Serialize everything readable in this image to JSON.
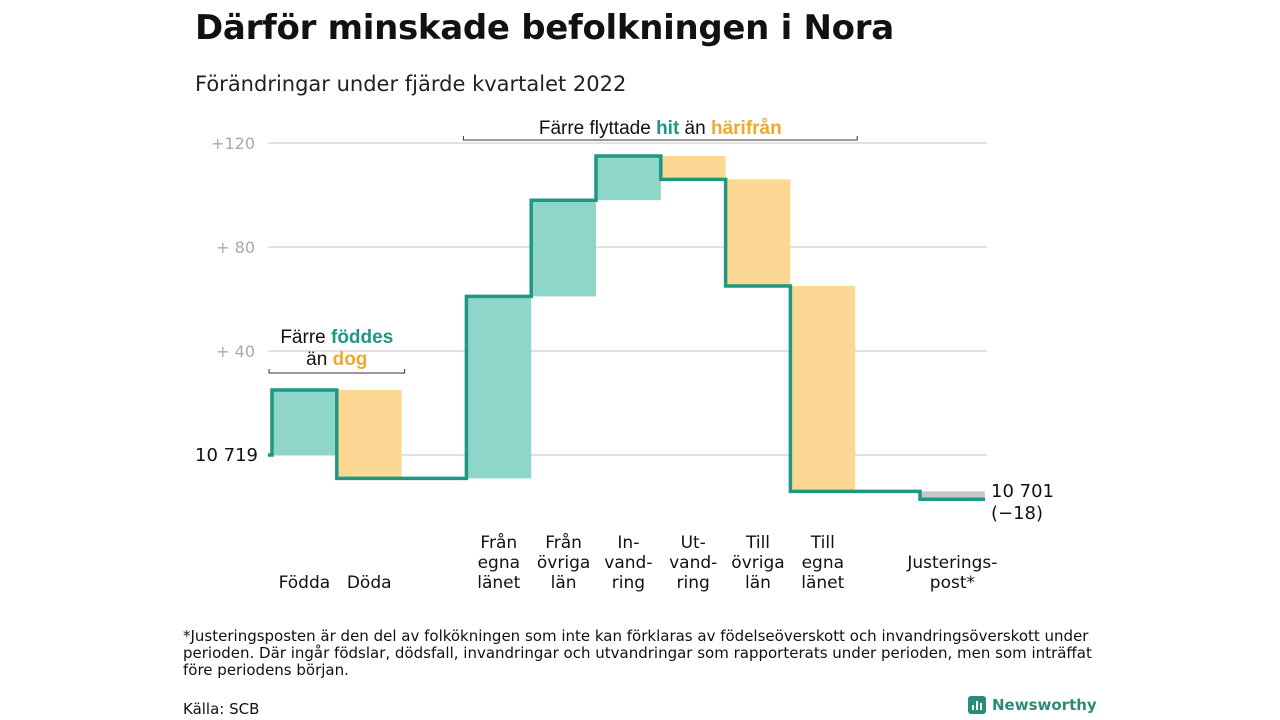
{
  "title": "Därför minskade befolkningen i Nora",
  "subtitle": "Förändringar under fjärde kvartalet 2022",
  "footnote": "*Justeringsposten är den del av folkökningen som inte kan förklaras av födelseöverskott och invandringsöverskott under perioden. Där ingår födslar, dödsfall, invandringar och utvandringar som rapporterats under perioden, men som inträffat före periodens början.",
  "source": "Källa: SCB",
  "brand": "Newsworthy",
  "colors": {
    "increase": "#8ed6c9",
    "decrease": "#fdd794",
    "adjustment": "#c8c8c8",
    "line": "#1f9783",
    "teal_text": "#1f9783",
    "orange_text": "#f0a830"
  },
  "chart_data": {
    "type": "waterfall",
    "y_ticks": [
      "+120",
      "+ 80",
      "+ 40"
    ],
    "y_tick_values": [
      120,
      80,
      40
    ],
    "ylim": [
      -20,
      130
    ],
    "baseline": 0,
    "start_label": "10 719",
    "end_label": [
      "10 701",
      "(−18)"
    ],
    "categories": [
      {
        "label": [
          "Födda"
        ],
        "change": 25
      },
      {
        "label": [
          "Döda"
        ],
        "change": -34
      },
      {
        "label": [],
        "change": 0,
        "flat": true
      },
      {
        "label": [
          "Från",
          "egna",
          "länet"
        ],
        "change": 70
      },
      {
        "label": [
          "Från",
          "övriga",
          "län"
        ],
        "change": 37
      },
      {
        "label": [
          "In-",
          "vand-",
          "ring"
        ],
        "change": 17
      },
      {
        "label": [
          "Ut-",
          "vand-",
          "ring"
        ],
        "change": -9
      },
      {
        "label": [
          "Till",
          "övriga",
          "län"
        ],
        "change": -41
      },
      {
        "label": [
          "Till",
          "egna",
          "länet"
        ],
        "change": -79
      },
      {
        "label": [],
        "change": 0,
        "flat": true
      },
      {
        "label": [
          "Justerings-",
          "post*"
        ],
        "change": -3,
        "adjustment": true
      }
    ],
    "annotations": [
      {
        "parts": [
          [
            "Färre ",
            "plain"
          ],
          [
            "föddes",
            "teal"
          ]
        ],
        "parts2": [
          [
            "än ",
            "plain"
          ],
          [
            "dog",
            "orange"
          ]
        ],
        "from": 0,
        "to": 1
      },
      {
        "parts": [
          [
            "Färre flyttade ",
            "plain"
          ],
          [
            "hit",
            "teal"
          ],
          [
            " än ",
            "plain"
          ],
          [
            "härifrån",
            "orange"
          ]
        ],
        "from": 3,
        "to": 8
      }
    ]
  }
}
